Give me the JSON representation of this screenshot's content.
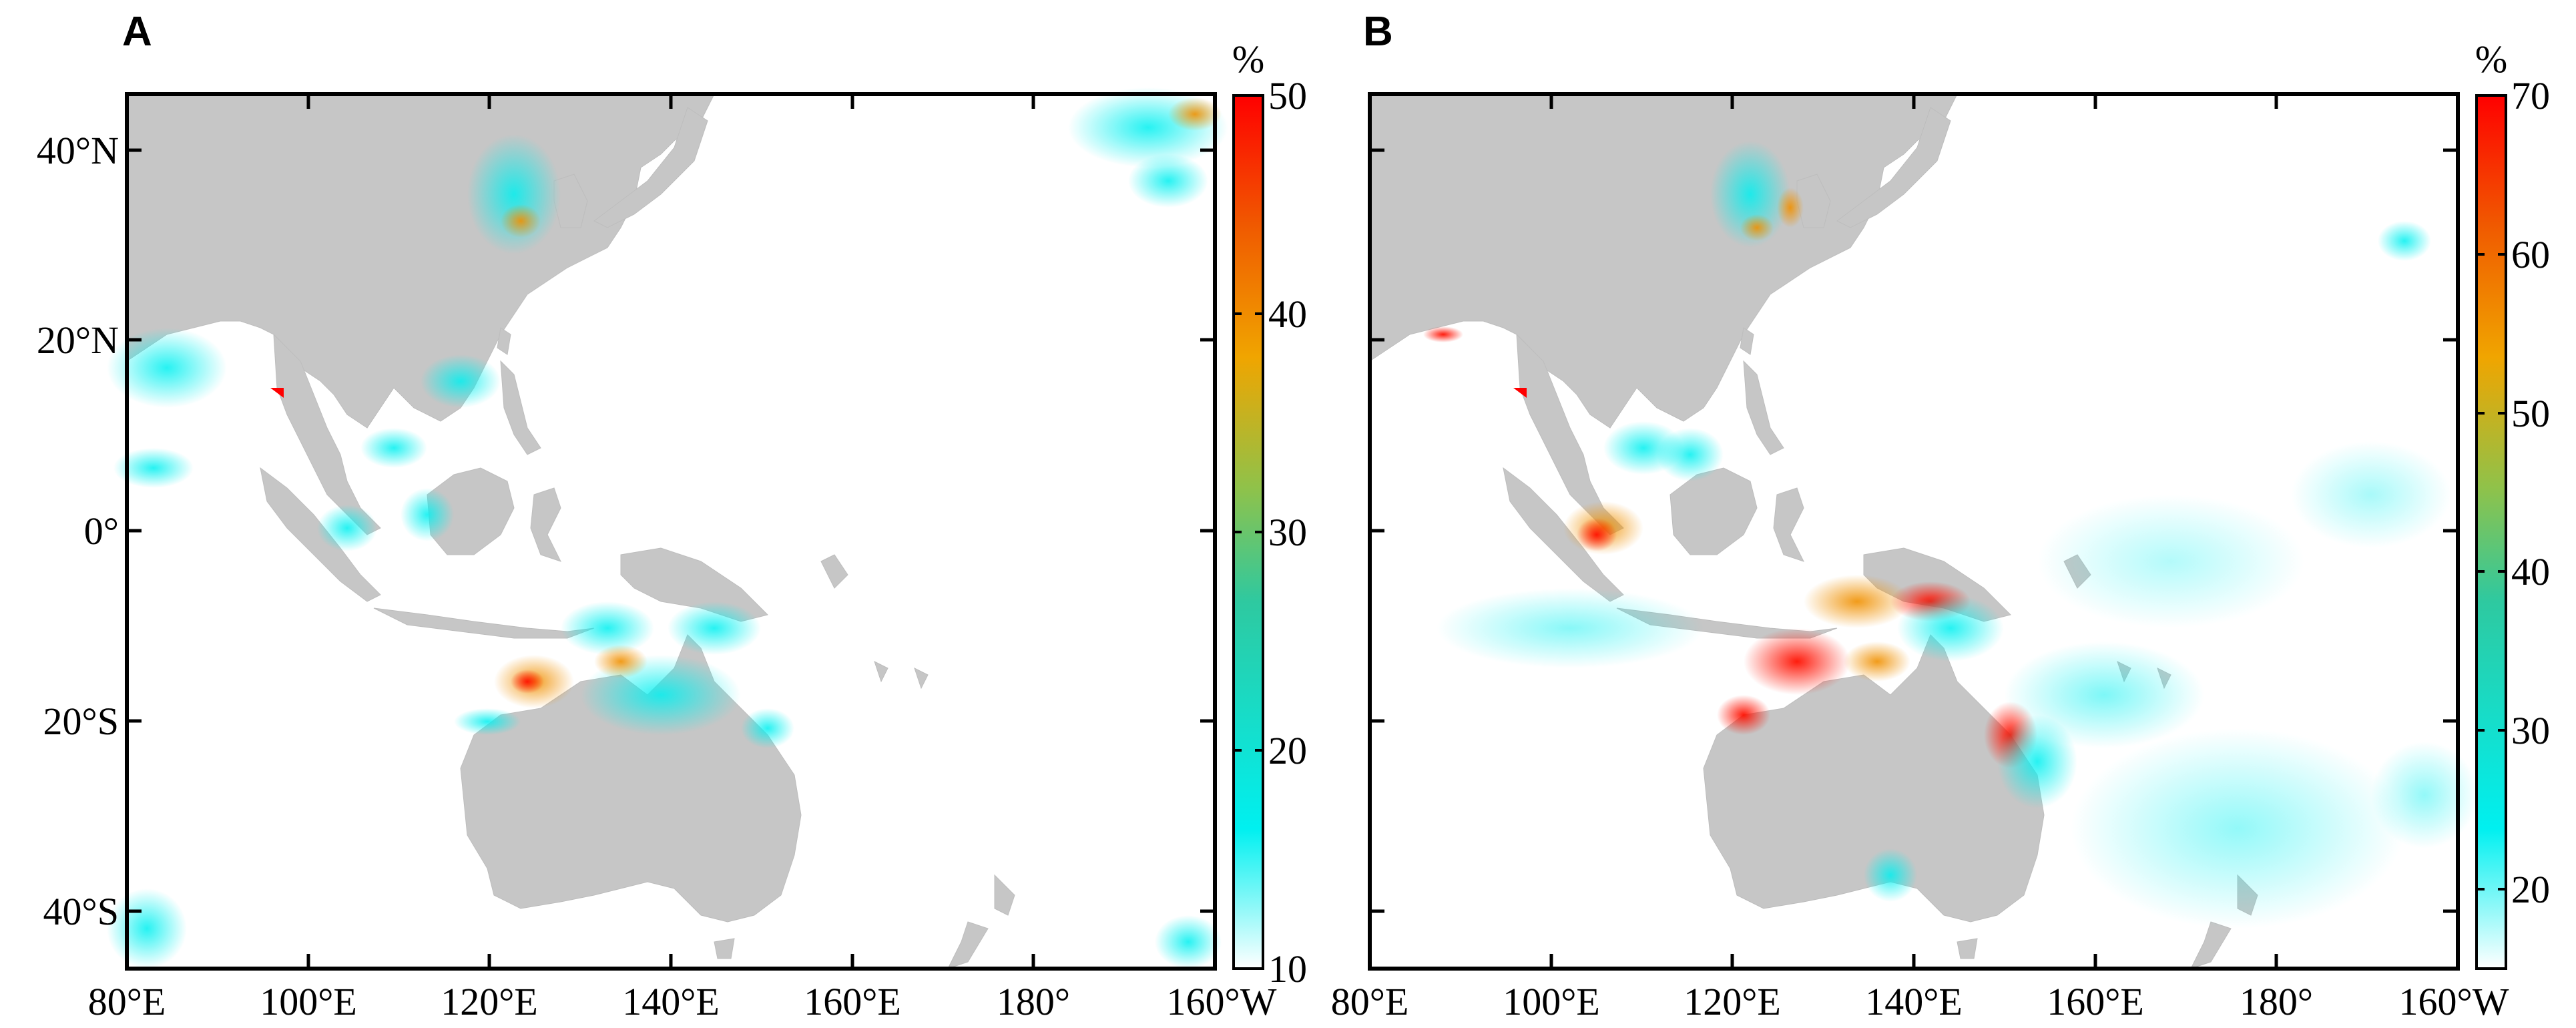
{
  "panels": [
    {
      "label": "A",
      "colorbar": {
        "unit": "%",
        "ticks": [
          "10",
          "20",
          "30",
          "40",
          "50"
        ],
        "min": 10,
        "max": 50
      },
      "x_ticks": [
        "80°E",
        "100°E",
        "120°E",
        "140°E",
        "160°E",
        "180°",
        "160°W"
      ],
      "y_ticks": [
        "40°N",
        "20°N",
        "0°",
        "20°S",
        "40°S"
      ]
    },
    {
      "label": "B",
      "colorbar": {
        "unit": "%",
        "ticks": [
          "20",
          "30",
          "40",
          "50",
          "60",
          "70"
        ],
        "min": 15,
        "max": 70
      },
      "x_ticks": [
        "80°E",
        "100°E",
        "120°E",
        "140°E",
        "160°E",
        "180°",
        "160°W"
      ]
    }
  ],
  "map": {
    "lon_range": [
      80,
      200
    ],
    "lat_range": [
      -46,
      46
    ],
    "land_color": "#c6c6c6"
  },
  "colormap": [
    "#ffffff",
    "#00f0f0",
    "#2ec9a0",
    "#8fc24a",
    "#f0a500",
    "#f05a00",
    "#ff0000"
  ]
}
